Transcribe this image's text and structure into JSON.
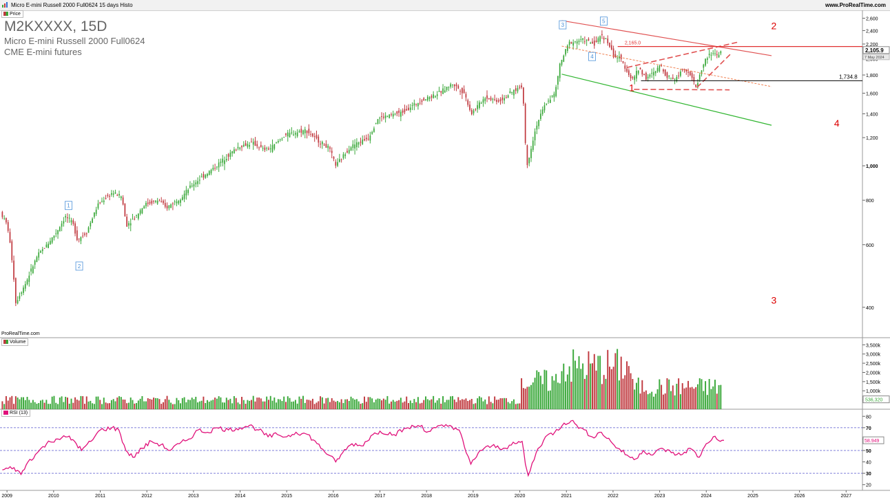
{
  "window": {
    "title": "Micro E-mini Russell 2000 Full0624 15 days Histo",
    "site": "www.ProRealTime.com",
    "credit": "ProRealTime.com"
  },
  "header": {
    "symbol": "M2KXXXX, 15D",
    "name": "Micro E-mini Russell 2000 Full0624",
    "exchange": "CME E-mini futures"
  },
  "panes": {
    "price_tag": "Price",
    "volume_tag": "Volume",
    "rsi_tag": "RSI (13)"
  },
  "colors": {
    "up": "#3aa83a",
    "down": "#c0393f",
    "rsi": "#e0107a",
    "trend_red": "#e05050",
    "trend_green": "#2fb52f",
    "wave_label": "#dd0000",
    "wave_box": "#4a90d9"
  },
  "chart_data": [
    {
      "type": "candlestick",
      "title": "M2KXXXX, 15D",
      "x_axis": {
        "ticks": [
          "2009",
          "2010",
          "2011",
          "2012",
          "2013",
          "2014",
          "2015",
          "2016",
          "2017",
          "2018",
          "2019",
          "2020",
          "2021",
          "2022",
          "2023",
          "2024",
          "2025",
          "2026",
          "2027"
        ]
      },
      "y_axis": {
        "scale": "log",
        "ticks": [
          400,
          600,
          800,
          1000,
          1200,
          1400,
          1600,
          1800,
          2000,
          2200,
          2400,
          2600
        ],
        "tick_labels": [
          "400",
          "600",
          "800",
          "1,000",
          "1,200",
          "1,400",
          "1,600",
          "1,800",
          "2,000",
          "2,200",
          "2,400",
          "2,600"
        ]
      },
      "ylim": [
        330,
        2700
      ],
      "xlim": [
        2008.85,
        2027.35
      ],
      "last_price": "2,105.9",
      "last_date": "7 May 2024",
      "price_path": [
        [
          2008.9,
          740
        ],
        [
          2009.05,
          680
        ],
        [
          2009.18,
          500
        ],
        [
          2009.22,
          410
        ],
        [
          2009.45,
          470
        ],
        [
          2009.7,
          560
        ],
        [
          2009.9,
          600
        ],
        [
          2010.1,
          650
        ],
        [
          2010.3,
          720
        ],
        [
          2010.45,
          690
        ],
        [
          2010.55,
          620
        ],
        [
          2010.75,
          650
        ],
        [
          2011.0,
          780
        ],
        [
          2011.3,
          840
        ],
        [
          2011.5,
          820
        ],
        [
          2011.6,
          680
        ],
        [
          2011.8,
          720
        ],
        [
          2012.0,
          780
        ],
        [
          2012.3,
          800
        ],
        [
          2012.45,
          760
        ],
        [
          2012.8,
          820
        ],
        [
          2013.0,
          880
        ],
        [
          2013.5,
          990
        ],
        [
          2014.0,
          1130
        ],
        [
          2014.3,
          1160
        ],
        [
          2014.55,
          1110
        ],
        [
          2014.7,
          1120
        ],
        [
          2015.0,
          1220
        ],
        [
          2015.45,
          1260
        ],
        [
          2015.7,
          1180
        ],
        [
          2015.95,
          1120
        ],
        [
          2016.1,
          1000
        ],
        [
          2016.4,
          1130
        ],
        [
          2016.8,
          1200
        ],
        [
          2017.0,
          1360
        ],
        [
          2017.5,
          1410
        ],
        [
          2017.9,
          1520
        ],
        [
          2018.3,
          1600
        ],
        [
          2018.6,
          1700
        ],
        [
          2018.85,
          1600
        ],
        [
          2019.0,
          1400
        ],
        [
          2019.3,
          1560
        ],
        [
          2019.6,
          1520
        ],
        [
          2019.9,
          1620
        ],
        [
          2020.1,
          1680
        ],
        [
          2020.15,
          1200
        ],
        [
          2020.2,
          1000
        ],
        [
          2020.4,
          1300
        ],
        [
          2020.6,
          1500
        ],
        [
          2020.8,
          1600
        ],
        [
          2020.9,
          1920
        ],
        [
          2021.1,
          2220
        ],
        [
          2021.4,
          2260
        ],
        [
          2021.65,
          2200
        ],
        [
          2021.8,
          2340
        ],
        [
          2021.95,
          2200
        ],
        [
          2022.05,
          2040
        ],
        [
          2022.2,
          2000
        ],
        [
          2022.35,
          1840
        ],
        [
          2022.45,
          1740
        ],
        [
          2022.6,
          1880
        ],
        [
          2022.75,
          1760
        ],
        [
          2022.95,
          1840
        ],
        [
          2023.05,
          1920
        ],
        [
          2023.2,
          1780
        ],
        [
          2023.4,
          1760
        ],
        [
          2023.55,
          1900
        ],
        [
          2023.7,
          1800
        ],
        [
          2023.82,
          1660
        ],
        [
          2023.95,
          1880
        ],
        [
          2024.05,
          2020
        ],
        [
          2024.2,
          2080
        ],
        [
          2024.3,
          2040
        ],
        [
          2024.35,
          2105.9
        ]
      ],
      "annotations": {
        "horizontal_levels": [
          {
            "value": 2165.0,
            "label": "2,165.0",
            "color": "#e03030"
          },
          {
            "value": 1734.8,
            "label": "1,734.8",
            "color": "#000000"
          }
        ],
        "elliott_boxes": [
          {
            "label": "1",
            "x": 2010.32,
            "y": 770
          },
          {
            "label": "2",
            "x": 2010.55,
            "y": 520
          },
          {
            "label": "3",
            "x": 2020.92,
            "y": 2480
          },
          {
            "label": "4",
            "x": 2021.55,
            "y": 2020
          },
          {
            "label": "5",
            "x": 2021.8,
            "y": 2540
          }
        ],
        "wave_labels": [
          {
            "label": "1",
            "x": 2022.4,
            "y": 1620
          },
          {
            "label": "2",
            "x": 2025.45,
            "y": 2420
          },
          {
            "label": "3",
            "x": 2025.45,
            "y": 410
          },
          {
            "label": "4",
            "x": 2026.8,
            "y": 1290
          }
        ]
      }
    },
    {
      "type": "bar",
      "title": "Volume",
      "y_axis": {
        "ticks": [
          "500k",
          "1,000k",
          "1,500k",
          "2,000k",
          "2,500k",
          "3,000k",
          "3,500k"
        ]
      },
      "ylim": [
        0,
        3700000
      ],
      "last_value": "536,320",
      "segments": [
        {
          "from": 2008.9,
          "to": 2020.0,
          "level": 500000
        },
        {
          "from": 2020.05,
          "to": 2020.85,
          "level": 1500000
        },
        {
          "from": 2020.85,
          "to": 2022.4,
          "level": 2300000
        },
        {
          "from": 2022.4,
          "to": 2024.4,
          "level": 1200000
        }
      ]
    },
    {
      "type": "line",
      "title": "RSI (13)",
      "y_axis": {
        "ticks": [
          20,
          30,
          40,
          50,
          60,
          70,
          80
        ]
      },
      "ylim": [
        15,
        85
      ],
      "reference_lines": [
        30,
        50,
        70
      ],
      "last_value": "58.949",
      "points": [
        [
          2008.9,
          33
        ],
        [
          2009.15,
          35
        ],
        [
          2009.3,
          29
        ],
        [
          2009.45,
          40
        ],
        [
          2009.65,
          48
        ],
        [
          2009.85,
          56
        ],
        [
          2010.05,
          60
        ],
        [
          2010.3,
          62
        ],
        [
          2010.45,
          58
        ],
        [
          2010.6,
          50
        ],
        [
          2010.8,
          58
        ],
        [
          2011.0,
          68
        ],
        [
          2011.25,
          70
        ],
        [
          2011.4,
          68
        ],
        [
          2011.55,
          50
        ],
        [
          2011.7,
          44
        ],
        [
          2011.9,
          52
        ],
        [
          2012.1,
          58
        ],
        [
          2012.3,
          55
        ],
        [
          2012.5,
          50
        ],
        [
          2012.7,
          56
        ],
        [
          2012.9,
          60
        ],
        [
          2013.1,
          68
        ],
        [
          2013.3,
          66
        ],
        [
          2013.5,
          70
        ],
        [
          2013.75,
          68
        ],
        [
          2014.0,
          70
        ],
        [
          2014.2,
          72
        ],
        [
          2014.4,
          68
        ],
        [
          2014.6,
          62
        ],
        [
          2014.8,
          64
        ],
        [
          2015.0,
          62
        ],
        [
          2015.2,
          66
        ],
        [
          2015.45,
          64
        ],
        [
          2015.65,
          56
        ],
        [
          2015.9,
          46
        ],
        [
          2016.05,
          40
        ],
        [
          2016.2,
          48
        ],
        [
          2016.4,
          56
        ],
        [
          2016.6,
          54
        ],
        [
          2016.85,
          64
        ],
        [
          2017.0,
          67
        ],
        [
          2017.3,
          64
        ],
        [
          2017.6,
          70
        ],
        [
          2017.9,
          72
        ],
        [
          2018.0,
          66
        ],
        [
          2018.2,
          70
        ],
        [
          2018.5,
          72
        ],
        [
          2018.7,
          68
        ],
        [
          2018.85,
          48
        ],
        [
          2018.95,
          38
        ],
        [
          2019.15,
          50
        ],
        [
          2019.4,
          54
        ],
        [
          2019.65,
          52
        ],
        [
          2019.9,
          56
        ],
        [
          2020.05,
          58
        ],
        [
          2020.12,
          38
        ],
        [
          2020.18,
          28
        ],
        [
          2020.35,
          48
        ],
        [
          2020.55,
          62
        ],
        [
          2020.75,
          66
        ],
        [
          2020.95,
          74
        ],
        [
          2021.1,
          76
        ],
        [
          2021.3,
          70
        ],
        [
          2021.55,
          62
        ],
        [
          2021.75,
          66
        ],
        [
          2021.95,
          58
        ],
        [
          2022.1,
          52
        ],
        [
          2022.3,
          46
        ],
        [
          2022.45,
          42
        ],
        [
          2022.65,
          50
        ],
        [
          2022.85,
          46
        ],
        [
          2023.05,
          52
        ],
        [
          2023.25,
          48
        ],
        [
          2023.45,
          46
        ],
        [
          2023.65,
          52
        ],
        [
          2023.85,
          44
        ],
        [
          2024.0,
          56
        ],
        [
          2024.15,
          62
        ],
        [
          2024.3,
          58
        ],
        [
          2024.38,
          58.949
        ]
      ]
    }
  ]
}
